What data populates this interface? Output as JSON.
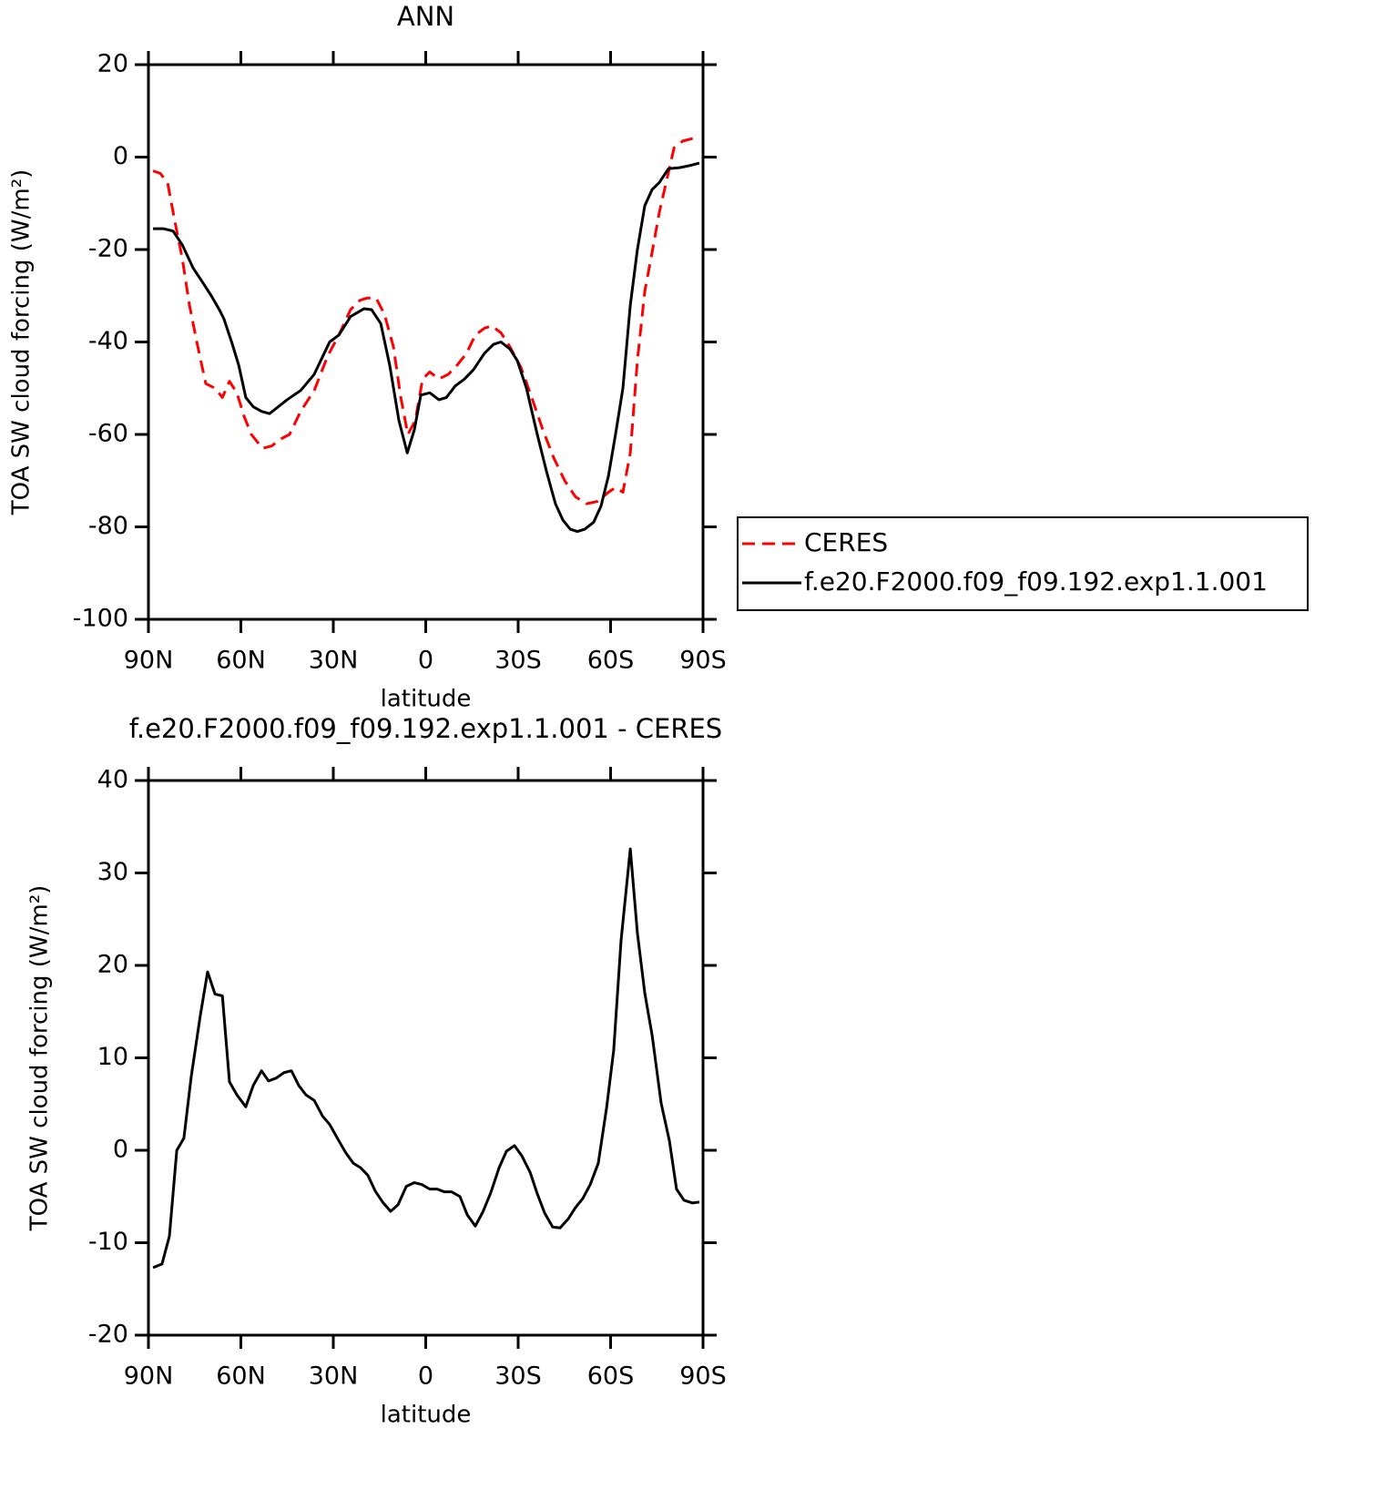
{
  "chart_data": [
    {
      "type": "line",
      "title": "ANN",
      "ylabel": "TOA SW cloud forcing (W/m²)",
      "xlabel": "latitude",
      "xlim": [
        90,
        -90
      ],
      "xticks": [
        {
          "value": 90,
          "label": "90N"
        },
        {
          "value": 60,
          "label": "60N"
        },
        {
          "value": 30,
          "label": "30N"
        },
        0,
        {
          "value": -30,
          "label": "30S"
        },
        {
          "value": -60,
          "label": "60S"
        },
        {
          "value": -90,
          "label": "90S"
        }
      ],
      "ylim": [
        -100,
        20
      ],
      "yticks": [
        -100,
        -80,
        -60,
        -40,
        -20,
        0,
        20
      ],
      "legend": "right",
      "series": [
        {
          "name": "CERES",
          "color": "#ff0000",
          "dashed": true,
          "x": [
            88.5,
            86.2,
            83.8,
            81.4,
            79,
            76.7,
            74.3,
            71.4,
            68.4,
            66,
            63.7,
            61.3,
            59,
            56.6,
            53,
            50,
            47.1,
            44.2,
            40.6,
            36.2,
            31.8,
            28.2,
            24.4,
            21.4,
            19.1,
            16.1,
            13.4,
            10.5,
            8.1,
            5.8,
            3.4,
            1,
            -1.3,
            -4.3,
            -7.3,
            -10.2,
            -13.2,
            -16.1,
            -19.1,
            -21.4,
            -24.4,
            -27.3,
            -30.9,
            -34.4,
            -38,
            -41.5,
            -45.1,
            -48.6,
            -52.2,
            -55.7,
            -59.3,
            -61.6,
            -64,
            -66.4,
            -68.7,
            -71.1,
            -73.5,
            -75.8,
            -78.2,
            -80.6,
            -83.5,
            -86.5,
            -88.8
          ],
          "values": [
            -3,
            -3.5,
            -5.5,
            -14,
            -22,
            -32,
            -40,
            -49,
            -50,
            -52,
            -48.5,
            -51,
            -56,
            -60,
            -63,
            -62.5,
            -61,
            -60,
            -55,
            -50.5,
            -43,
            -38.5,
            -33,
            -31,
            -30.5,
            -30.5,
            -34,
            -41,
            -52,
            -60,
            -57,
            -48,
            -46.5,
            -48,
            -47,
            -45,
            -42.5,
            -38.5,
            -37,
            -36.5,
            -38,
            -41,
            -45.5,
            -52,
            -59,
            -65,
            -70,
            -73.5,
            -75,
            -74.5,
            -72.5,
            -71.5,
            -72.5,
            -64,
            -44,
            -29,
            -20.5,
            -12,
            -5,
            2,
            3.5,
            4,
            4.2
          ]
        },
        {
          "name": "f.e20.F2000.f09_f09.192.exp1.1.001",
          "color": "#000000",
          "dashed": false,
          "x": [
            88.5,
            85,
            82,
            79,
            75.5,
            72.5,
            69.6,
            67,
            65.5,
            63,
            60.7,
            58.4,
            56,
            53.3,
            50.7,
            45,
            40.6,
            36.2,
            31.2,
            28.2,
            24.4,
            20,
            17.6,
            14.6,
            11.7,
            8.7,
            6,
            3.7,
            1.6,
            -1.3,
            -4.3,
            -6.7,
            -9.6,
            -12.6,
            -15.5,
            -19,
            -22,
            -24.4,
            -27.3,
            -29.7,
            -32.7,
            -36.2,
            -39.2,
            -42.1,
            -44.5,
            -46.9,
            -49.2,
            -51.6,
            -54.5,
            -56.9,
            -59.3,
            -61.6,
            -64,
            -66.4,
            -68.7,
            -71.1,
            -73.5,
            -75.8,
            -78.8,
            -82.3,
            -85.9,
            -88.8
          ],
          "values": [
            -15.5,
            -15.5,
            -16,
            -19,
            -24,
            -27,
            -30,
            -33,
            -35,
            -40,
            -45,
            -52,
            -54,
            -55,
            -55.5,
            -52.5,
            -50.5,
            -47,
            -40,
            -38.5,
            -34.5,
            -32.8,
            -33,
            -36,
            -45,
            -57,
            -64,
            -59,
            -51.5,
            -51,
            -52.5,
            -52,
            -49.5,
            -48,
            -46,
            -42.5,
            -40.5,
            -40,
            -41.5,
            -44,
            -50,
            -60,
            -68,
            -75,
            -78.5,
            -80.5,
            -81,
            -80.5,
            -79,
            -75.5,
            -69,
            -60,
            -50,
            -32,
            -20,
            -10.5,
            -7,
            -5.5,
            -2.5,
            -2.3,
            -1.8,
            -1.3
          ]
        }
      ]
    },
    {
      "type": "line",
      "title": "f.e20.F2000.f09_f09.192.exp1.1.001 - CERES",
      "ylabel": "TOA SW cloud forcing (W/m²)",
      "xlabel": "latitude",
      "xlim": [
        90,
        -90
      ],
      "xticks": [
        {
          "value": 90,
          "label": "90N"
        },
        {
          "value": 60,
          "label": "60N"
        },
        {
          "value": 30,
          "label": "30N"
        },
        0,
        {
          "value": -30,
          "label": "30S"
        },
        {
          "value": -60,
          "label": "60S"
        },
        {
          "value": -90,
          "label": "90S"
        }
      ],
      "ylim": [
        -20,
        40
      ],
      "yticks": [
        -20,
        -10,
        0,
        10,
        20,
        30,
        40
      ],
      "series": [
        {
          "color": "#000000",
          "dashed": false,
          "x": [
            88.5,
            85.6,
            83.2,
            80.8,
            78.5,
            76.1,
            73.2,
            70.8,
            68.4,
            66,
            63.7,
            61.3,
            58.4,
            56,
            53.3,
            51,
            48.6,
            46,
            43.6,
            41.2,
            38.9,
            36.2,
            33.5,
            31.2,
            28.5,
            25.9,
            23.5,
            21.1,
            18.8,
            16.4,
            14,
            11.4,
            9,
            6.3,
            3.7,
            1.3,
            -1.3,
            -3.7,
            -6.1,
            -8.4,
            -11.1,
            -13.5,
            -16.1,
            -18.5,
            -21.1,
            -23.8,
            -26.2,
            -28.8,
            -31.2,
            -33.9,
            -36.2,
            -38.6,
            -41.2,
            -43.6,
            -46.3,
            -48.6,
            -51,
            -53.4,
            -56,
            -58.7,
            -61,
            -63.4,
            -66.4,
            -68.7,
            -71.1,
            -73.5,
            -76.4,
            -79.1,
            -81.4,
            -83.8,
            -86.5,
            -88.8
          ],
          "values": [
            -12.7,
            -12.3,
            -9.3,
            0,
            1.3,
            8,
            14.5,
            19.3,
            16.9,
            16.7,
            7.4,
            6,
            4.7,
            7,
            8.6,
            7.5,
            7.8,
            8.4,
            8.6,
            7,
            6,
            5.4,
            3.7,
            2.8,
            1.2,
            -0.3,
            -1.4,
            -1.9,
            -2.7,
            -4.4,
            -5.6,
            -6.6,
            -5.9,
            -3.9,
            -3.5,
            -3.7,
            -4.2,
            -4.2,
            -4.5,
            -4.5,
            -5,
            -7,
            -8.2,
            -6.7,
            -4.6,
            -1.9,
            -0.1,
            0.5,
            -0.6,
            -2.4,
            -4.7,
            -6.8,
            -8.3,
            -8.4,
            -7.4,
            -6.2,
            -5.2,
            -3.7,
            -1.4,
            4.6,
            10.8,
            22.7,
            32.6,
            23.5,
            17,
            12.4,
            5.1,
            1,
            -4.2,
            -5.4,
            -5.7,
            -5.6
          ]
        }
      ]
    }
  ]
}
